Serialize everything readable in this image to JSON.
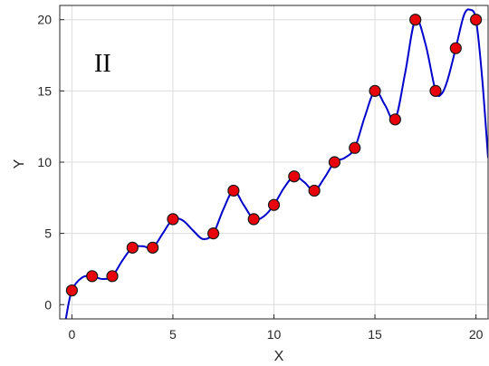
{
  "chart_data": {
    "type": "scatter",
    "annotation": "II",
    "xlabel": "X",
    "ylabel": "Y",
    "xlim": [
      -0.6,
      20.6
    ],
    "ylim": [
      -1,
      21
    ],
    "xticks": [
      0,
      5,
      10,
      15,
      20
    ],
    "yticks": [
      0,
      5,
      10,
      15,
      20
    ],
    "grid": true,
    "series": [
      {
        "marker": "circle",
        "marker_fill": "#e8000b",
        "marker_edge": "#1a1a1a",
        "points": [
          [
            0,
            1
          ],
          [
            1,
            2
          ],
          [
            2,
            2
          ],
          [
            3,
            4
          ],
          [
            4,
            4
          ],
          [
            5,
            6
          ],
          [
            7,
            5
          ],
          [
            8,
            8
          ],
          [
            9,
            6
          ],
          [
            10,
            7
          ],
          [
            11,
            9
          ],
          [
            12,
            8
          ],
          [
            13,
            10
          ],
          [
            14,
            11
          ],
          [
            15,
            15
          ],
          [
            16,
            13
          ],
          [
            17,
            20
          ],
          [
            18,
            15
          ],
          [
            19,
            18
          ],
          [
            20,
            20
          ]
        ]
      },
      {
        "line_color": "#0000cc",
        "curve": [
          [
            -0.3,
            -1.0
          ],
          [
            0,
            1.0
          ],
          [
            0.5,
            1.9
          ],
          [
            1,
            2.0
          ],
          [
            1.5,
            1.8
          ],
          [
            2,
            2.0
          ],
          [
            2.5,
            3.1
          ],
          [
            3,
            4.0
          ],
          [
            3.5,
            4.1
          ],
          [
            4,
            4.0
          ],
          [
            4.5,
            5.0
          ],
          [
            5,
            6.0
          ],
          [
            5.5,
            5.9
          ],
          [
            6,
            5.2
          ],
          [
            6.5,
            4.6
          ],
          [
            7,
            5.0
          ],
          [
            7.5,
            6.7
          ],
          [
            8,
            8.0
          ],
          [
            8.5,
            7.0
          ],
          [
            9,
            6.0
          ],
          [
            9.5,
            6.2
          ],
          [
            10,
            7.0
          ],
          [
            10.5,
            8.2
          ],
          [
            11,
            9.0
          ],
          [
            11.5,
            8.6
          ],
          [
            12,
            8.0
          ],
          [
            12.5,
            8.9
          ],
          [
            13,
            10.0
          ],
          [
            13.5,
            10.3
          ],
          [
            14,
            11.0
          ],
          [
            14.5,
            13.2
          ],
          [
            15,
            15.0
          ],
          [
            15.5,
            14.0
          ],
          [
            16,
            13.0
          ],
          [
            16.5,
            16.3
          ],
          [
            17,
            20.0
          ],
          [
            17.5,
            18.3
          ],
          [
            18,
            15.0
          ],
          [
            18.3,
            14.8
          ],
          [
            18.6,
            15.8
          ],
          [
            19,
            18.0
          ],
          [
            19.4,
            20.3
          ],
          [
            19.7,
            20.7
          ],
          [
            20,
            20.0
          ],
          [
            20.3,
            16.0
          ],
          [
            20.6,
            10.3
          ]
        ]
      }
    ]
  }
}
